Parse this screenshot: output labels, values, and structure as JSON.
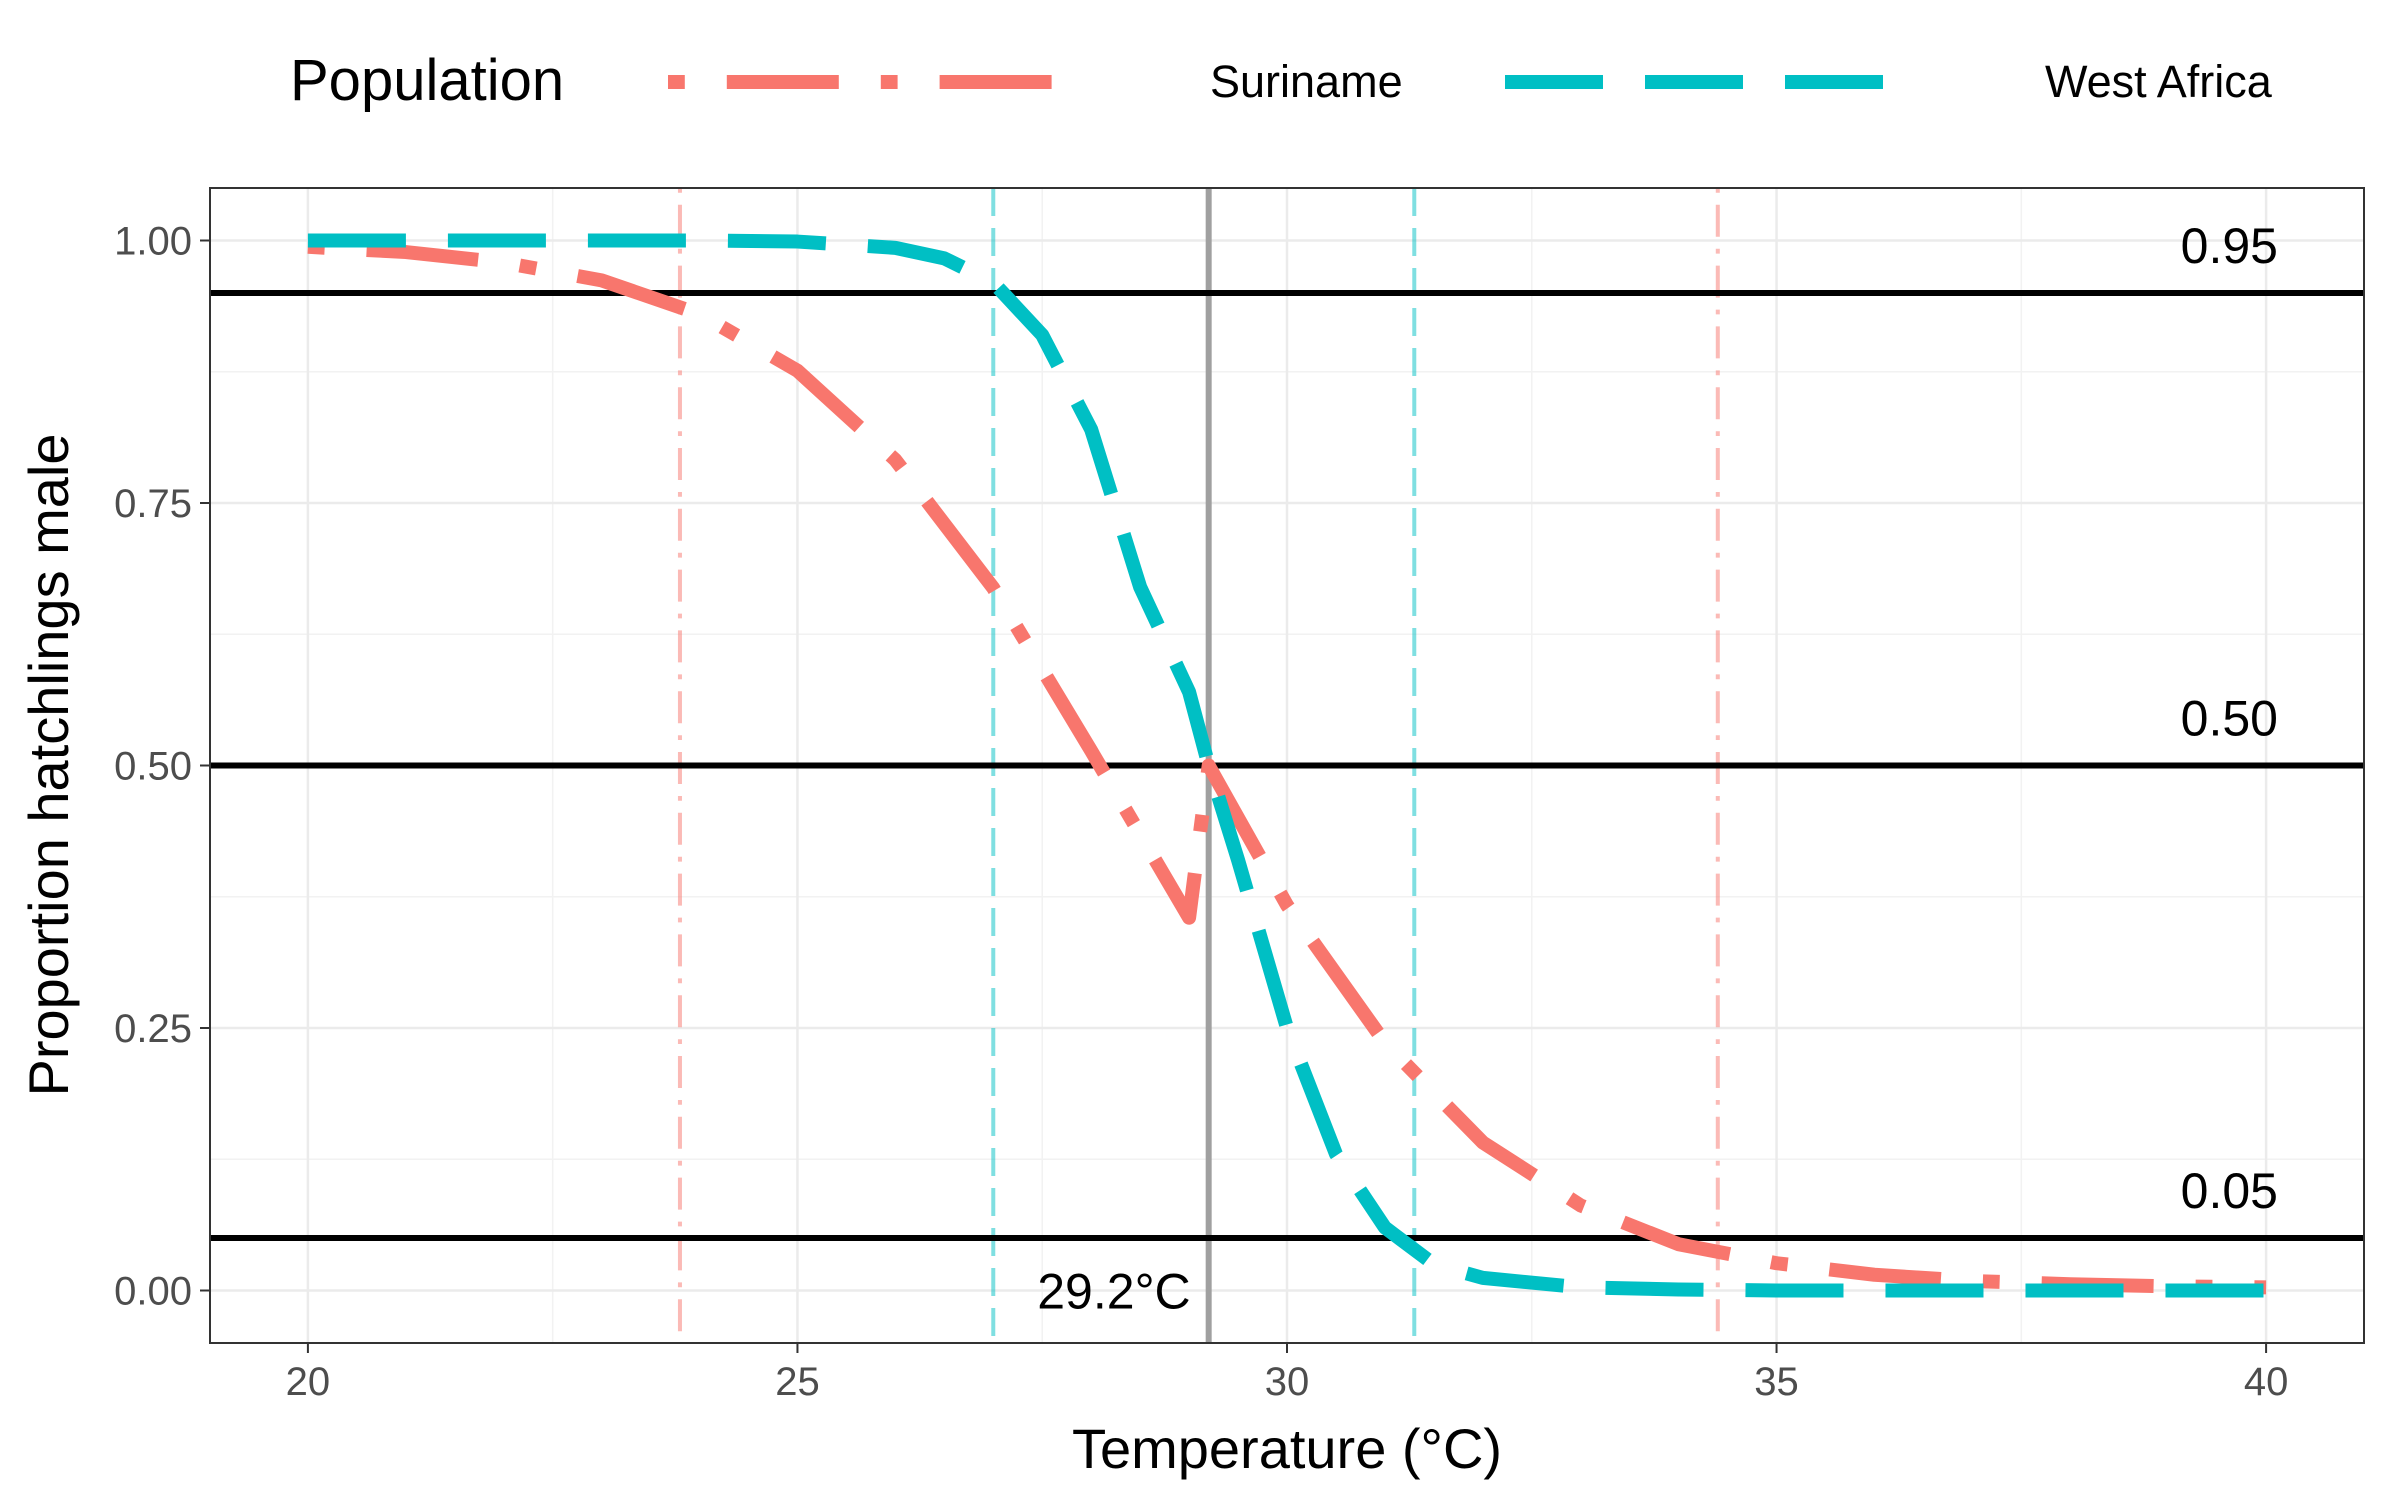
{
  "chart_data": {
    "type": "line",
    "xlabel": "Temperature (°C)",
    "ylabel": "Proportion hatchlings male",
    "xlim": [
      19,
      41
    ],
    "ylim": [
      -0.05,
      1.05
    ],
    "x_ticks": [
      20,
      25,
      30,
      35,
      40
    ],
    "y_ticks": [
      0,
      0.25,
      0.5,
      0.75,
      1
    ],
    "x_tick_labels": [
      "20",
      "25",
      "30",
      "35",
      "40"
    ],
    "y_tick_labels": [
      "0.00",
      "0.25",
      "0.50",
      "0.75",
      "1.00"
    ],
    "grid": true,
    "legend": {
      "title": "Population",
      "position": "top",
      "items": [
        {
          "label": "Suriname",
          "color": "#F8766D",
          "linetype": "dotdash"
        },
        {
          "label": "West Africa",
          "color": "#00BFC4",
          "linetype": "longdash"
        }
      ]
    },
    "series": [
      {
        "name": "Suriname",
        "color": "#F8766D",
        "x": [
          20,
          21,
          22,
          23,
          24,
          25,
          26,
          27,
          28,
          29,
          29.2,
          30,
          31,
          32,
          33,
          34,
          35,
          36,
          37,
          38,
          39,
          40
        ],
        "y": [
          0.994,
          0.989,
          0.979,
          0.962,
          0.93,
          0.876,
          0.791,
          0.669,
          0.514,
          0.355,
          0.5,
          0.367,
          0.236,
          0.141,
          0.081,
          0.044,
          0.026,
          0.015,
          0.009,
          0.006,
          0.004,
          0.003
        ]
      },
      {
        "name": "West Africa",
        "color": "#00BFC4",
        "x": [
          20,
          21,
          22,
          23,
          24,
          25,
          26,
          26.5,
          27,
          27.5,
          28,
          28.5,
          29,
          29.2,
          29.5,
          30,
          30.5,
          31,
          31.5,
          32,
          33,
          34,
          35,
          36,
          37,
          38,
          39,
          40
        ],
        "y": [
          1,
          1,
          1,
          1,
          1,
          0.999,
          0.993,
          0.983,
          0.96,
          0.91,
          0.82,
          0.67,
          0.57,
          0.5,
          0.41,
          0.25,
          0.13,
          0.06,
          0.025,
          0.012,
          0.003,
          0.001,
          0,
          0,
          0,
          0,
          0,
          0
        ]
      }
    ],
    "hlines": [
      {
        "y": 0.95,
        "label": "0.95",
        "color": "#000000"
      },
      {
        "y": 0.5,
        "label": "0.50",
        "color": "#000000"
      },
      {
        "y": 0.05,
        "label": "0.05",
        "color": "#000000"
      }
    ],
    "vlines": [
      {
        "x": 29.2,
        "color": "#A0A0A0",
        "label": "29.2°C"
      },
      {
        "x": 23.8,
        "color": "#F8766D",
        "linetype": "dotdash"
      },
      {
        "x": 34.4,
        "color": "#F8766D",
        "linetype": "dotdash"
      },
      {
        "x": 27.0,
        "color": "#00BFC4",
        "linetype": "longdash"
      },
      {
        "x": 31.3,
        "color": "#00BFC4",
        "linetype": "longdash"
      }
    ]
  }
}
